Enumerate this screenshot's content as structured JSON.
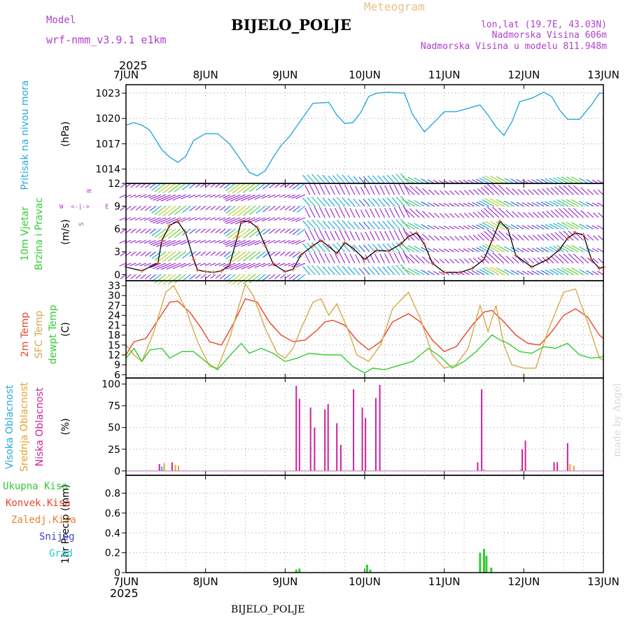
{
  "header": {
    "title": "BIJELO_POLJE",
    "meteogram_label": "Meteogram",
    "model_label": "Model",
    "model_name": "wrf-nmm_v3.9.1 e1km",
    "coords": "lon,lat (19.7E, 43.03N)",
    "elevation": "Nadmorska Visina 606m",
    "model_elevation": "Nadmorska Visina u modelu 811.948m",
    "year_top": "2025",
    "year_bottom": "2025",
    "footer_station": "BIJELO_POLJE",
    "credit": "made by Angel"
  },
  "colors": {
    "pressure": "#29a8e0",
    "wind_line": "#000000",
    "wind_marker": "#e8452c",
    "temp2m": "#e8452c",
    "sfc_temp": "#d8a84a",
    "dewpt": "#33cc33",
    "cloud_high": "#29a8e0",
    "cloud_mid": "#e8a030",
    "cloud_low": "#cc2299",
    "precip_total": "#33cc33",
    "precip_conv": "#e8452c",
    "precip_frz": "#f08030",
    "snow": "#4444dd",
    "hail": "#22cccc",
    "purple_text": "#b040d0",
    "orange_text": "#e8c088"
  },
  "chart_data": [
    {
      "type": "line",
      "panel": "pressure",
      "title": "",
      "ylabel_colored": [
        "Pritisak na nivou mora"
      ],
      "unit": "(hPa)",
      "x_tick_labels": [
        "7JUN",
        "8JUN",
        "9JUN",
        "10JUN",
        "11JUN",
        "12JUN",
        "13JUN"
      ],
      "x_domain_days": [
        0,
        6
      ],
      "ylim": [
        1012.3,
        1024
      ],
      "yticks": [
        1014,
        1017,
        1020,
        1023
      ],
      "grid": true,
      "series": [
        {
          "name": "Pritisak na nivou mora",
          "x": [
            0,
            0.1,
            0.2,
            0.3,
            0.45,
            0.55,
            0.65,
            0.75,
            0.85,
            1.0,
            1.15,
            1.3,
            1.45,
            1.55,
            1.65,
            1.75,
            1.85,
            1.95,
            2.05,
            2.2,
            2.35,
            2.55,
            2.65,
            2.75,
            2.85,
            2.95,
            3.05,
            3.15,
            3.3,
            3.5,
            3.6,
            3.75,
            3.9,
            4.0,
            4.15,
            4.3,
            4.45,
            4.55,
            4.65,
            4.75,
            4.85,
            4.95,
            5.1,
            5.25,
            5.35,
            5.45,
            5.55,
            5.7,
            5.85,
            5.95,
            6.0
          ],
          "y": [
            1019.2,
            1019.5,
            1019.2,
            1018.6,
            1016.3,
            1015.4,
            1014.8,
            1015.5,
            1017.4,
            1018.2,
            1018.2,
            1017.0,
            1015.0,
            1013.6,
            1013.2,
            1013.8,
            1015.4,
            1016.8,
            1017.8,
            1019.8,
            1021.8,
            1021.9,
            1020.4,
            1019.4,
            1019.5,
            1020.7,
            1022.6,
            1023.0,
            1023.1,
            1023.0,
            1020.5,
            1018.4,
            1019.8,
            1020.8,
            1020.8,
            1021.2,
            1021.6,
            1020.4,
            1019.0,
            1018.0,
            1019.6,
            1022.0,
            1022.4,
            1023.1,
            1022.6,
            1021.0,
            1019.9,
            1019.9,
            1021.6,
            1023.0,
            1023.0
          ]
        }
      ]
    },
    {
      "type": "line",
      "panel": "wind",
      "title": "",
      "ylabel_colored": [
        "10m Vjetar",
        "Brzina i Pravac"
      ],
      "unit": "(m/s)",
      "compass": {
        "n": "N",
        "s": "S",
        "e": "E",
        "w": "W",
        "rose": "<-|->"
      },
      "ylim": [
        -0.8,
        12
      ],
      "yticks": [
        0,
        3,
        6,
        9,
        12
      ],
      "grid": true,
      "series": [
        {
          "name": "Brzina",
          "x": [
            0,
            0.2,
            0.4,
            0.45,
            0.55,
            0.65,
            0.75,
            0.85,
            0.9,
            1.0,
            1.1,
            1.2,
            1.3,
            1.4,
            1.45,
            1.55,
            1.65,
            1.75,
            1.85,
            2.0,
            2.1,
            2.2,
            2.35,
            2.45,
            2.55,
            2.65,
            2.75,
            2.85,
            3.0,
            3.15,
            3.3,
            3.45,
            3.55,
            3.65,
            3.75,
            3.85,
            4.0,
            4.2,
            4.35,
            4.5,
            4.6,
            4.7,
            4.8,
            4.9,
            5.1,
            5.3,
            5.45,
            5.55,
            5.65,
            5.75,
            5.85,
            5.95,
            6.0
          ],
          "y": [
            1.0,
            0.5,
            1.5,
            4.5,
            6.5,
            7.0,
            5.5,
            2.0,
            0.6,
            0.4,
            0.3,
            0.5,
            1.2,
            5.0,
            7.0,
            7.0,
            6.2,
            3.8,
            1.4,
            0.4,
            0.7,
            2.6,
            3.8,
            4.5,
            3.7,
            2.8,
            4.2,
            3.5,
            2.0,
            3.2,
            3.1,
            4.0,
            5.0,
            5.5,
            4.0,
            1.5,
            0.3,
            0.3,
            0.8,
            2.0,
            4.5,
            7.0,
            6.0,
            2.5,
            1.0,
            2.0,
            3.3,
            4.8,
            5.5,
            5.2,
            2.0,
            0.8,
            1.0
          ]
        }
      ]
    },
    {
      "type": "line",
      "panel": "temperature",
      "title": "",
      "ylabel_colored": [
        "2m Temp",
        "SFC Temp",
        "dewpt Temp"
      ],
      "unit": "(C)",
      "ylim": [
        5,
        34.5
      ],
      "yticks": [
        6,
        9,
        12,
        15,
        18,
        21,
        24,
        27,
        30,
        33
      ],
      "grid": true,
      "series": [
        {
          "name": "2m Temp",
          "x": [
            0,
            0.1,
            0.25,
            0.4,
            0.55,
            0.65,
            0.8,
            0.95,
            1.05,
            1.2,
            1.35,
            1.5,
            1.65,
            1.8,
            1.95,
            2.1,
            2.25,
            2.4,
            2.5,
            2.6,
            2.75,
            2.9,
            3.05,
            3.2,
            3.35,
            3.55,
            3.7,
            3.85,
            4.0,
            4.15,
            4.35,
            4.5,
            4.6,
            4.75,
            4.9,
            5.05,
            5.2,
            5.35,
            5.5,
            5.65,
            5.8,
            5.95,
            6.0
          ],
          "y": [
            12,
            16,
            17,
            22.5,
            28,
            28.3,
            25,
            20,
            16,
            15,
            21.5,
            29,
            28,
            22,
            18,
            16,
            16.5,
            19.5,
            22,
            22.5,
            21,
            16.5,
            13.5,
            16,
            22,
            24.5,
            22,
            16.5,
            13,
            14.5,
            21,
            25,
            25.5,
            22,
            18,
            15.5,
            15,
            19,
            24,
            26,
            23.5,
            18,
            17
          ]
        },
        {
          "name": "SFC Temp",
          "x": [
            0,
            0.1,
            0.2,
            0.35,
            0.5,
            0.6,
            0.75,
            0.9,
            1.05,
            1.15,
            1.3,
            1.5,
            1.6,
            1.75,
            1.9,
            2.0,
            2.1,
            2.2,
            2.35,
            2.45,
            2.55,
            2.65,
            2.8,
            2.9,
            3.05,
            3.2,
            3.35,
            3.55,
            3.7,
            3.85,
            4.0,
            4.15,
            4.3,
            4.45,
            4.55,
            4.65,
            4.75,
            4.85,
            5.0,
            5.15,
            5.3,
            5.5,
            5.65,
            5.8,
            5.95,
            6.0
          ],
          "y": [
            15,
            12,
            10,
            19,
            31,
            33,
            26,
            16,
            8.5,
            8,
            17,
            33.5,
            30,
            20,
            12.5,
            11,
            14,
            20,
            28,
            29,
            24,
            27.5,
            19,
            12,
            10,
            15,
            26,
            31,
            23,
            12,
            8,
            9,
            14,
            27,
            19,
            27,
            15,
            9,
            8,
            8,
            19,
            31,
            32,
            22,
            11,
            10.5
          ]
        },
        {
          "name": "dewpt Temp",
          "x": [
            0,
            0.1,
            0.2,
            0.3,
            0.45,
            0.55,
            0.7,
            0.85,
            1.0,
            1.15,
            1.35,
            1.45,
            1.55,
            1.7,
            1.85,
            2.0,
            2.15,
            2.3,
            2.5,
            2.7,
            2.85,
            3.0,
            3.1,
            3.25,
            3.45,
            3.6,
            3.8,
            3.95,
            4.1,
            4.25,
            4.4,
            4.5,
            4.6,
            4.7,
            4.8,
            4.95,
            5.1,
            5.25,
            5.4,
            5.55,
            5.7,
            5.85,
            6.0
          ],
          "y": [
            11,
            14,
            10,
            13.5,
            14,
            11,
            13,
            13,
            10,
            7.5,
            13,
            15.5,
            12.5,
            14,
            12.5,
            10,
            11,
            12.5,
            12,
            12,
            8.5,
            6.5,
            8,
            7.5,
            9,
            10,
            14,
            11.5,
            8,
            10,
            13,
            15.5,
            18,
            16.5,
            15.5,
            13,
            12.5,
            14.5,
            14,
            15.5,
            12,
            11,
            11.5
          ]
        }
      ]
    },
    {
      "type": "bar",
      "panel": "clouds",
      "title": "",
      "ylabel_colored": [
        "Visoka Oblacnost",
        "Srednja Oblacnost",
        "Niska Oblacnost"
      ],
      "unit": "(%)",
      "ylim": [
        -5,
        107
      ],
      "yticks": [
        0,
        25,
        50,
        75,
        100
      ],
      "grid": true,
      "series": [
        {
          "name": "Visoka Oblacnost",
          "x": [
            0.45,
            4.98
          ],
          "values": [
            5,
            3
          ]
        },
        {
          "name": "Srednja Oblacnost",
          "x": [
            0.48,
            0.62,
            0.66,
            4.5,
            4.96,
            5.58,
            5.63
          ],
          "values": [
            9,
            7,
            6,
            2,
            2,
            8,
            6
          ]
        },
        {
          "name": "Niska Oblacnost",
          "x": [
            0.42,
            0.58,
            2.14,
            2.18,
            2.32,
            2.37,
            2.5,
            2.54,
            2.65,
            2.7,
            2.86,
            2.97,
            3.01,
            3.14,
            3.19,
            4.42,
            4.47,
            4.98,
            5.02,
            5.38,
            5.42,
            5.55
          ],
          "values": [
            8,
            10,
            98,
            83,
            73,
            50,
            71,
            77,
            55,
            30,
            94,
            73,
            61,
            84,
            99,
            10,
            94,
            25,
            35,
            10,
            10,
            32
          ]
        }
      ]
    },
    {
      "type": "bar",
      "panel": "precipitation",
      "title": "",
      "ylabel_colored": [
        "Ukupna Kisa",
        "Konvek.Kisa",
        "Zaledj.Kisa",
        "Snijeg",
        "Grad"
      ],
      "unit": "1hr Precip (mm)",
      "ylim": [
        0,
        0.98
      ],
      "yticks": [
        0,
        0.2,
        0.4,
        0.6,
        0.8
      ],
      "grid": true,
      "series": [
        {
          "name": "Ukupna Kisa",
          "x": [
            2.14,
            2.18,
            3.03,
            3.07,
            4.45,
            4.5,
            4.53,
            4.59
          ],
          "values": [
            0.03,
            0.04,
            0.08,
            0.03,
            0.2,
            0.24,
            0.17,
            0.05
          ]
        }
      ]
    }
  ]
}
